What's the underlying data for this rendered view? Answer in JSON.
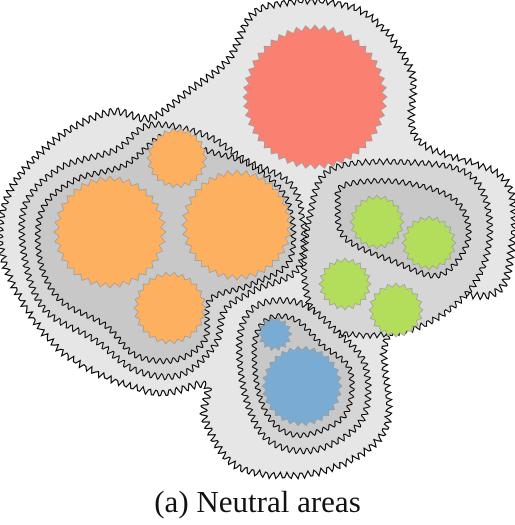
{
  "caption": "(a) Neutral areas",
  "colors": {
    "outer_area": "#e6e6e6",
    "group_area": "#c8c8c8",
    "outline": "#000000",
    "node_stroke": "#9a9a9a",
    "red": "#fa8072",
    "orange": "#fdb060",
    "green": "#b2de5c",
    "blue": "#7aacd3"
  },
  "groups": [
    {
      "name": "orange",
      "color_key": "orange",
      "nodes": 4
    },
    {
      "name": "green",
      "color_key": "green",
      "nodes": 4
    },
    {
      "name": "blue",
      "color_key": "blue",
      "nodes": 2
    },
    {
      "name": "red",
      "color_key": "red",
      "nodes": 1
    }
  ]
}
